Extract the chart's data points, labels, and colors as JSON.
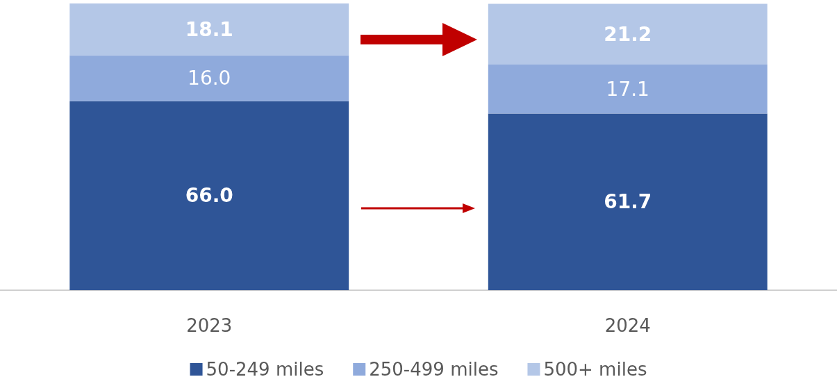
{
  "chart_data": {
    "type": "bar",
    "stacked": true,
    "categories": [
      "2023",
      "2024"
    ],
    "series": [
      {
        "name": "50-249 miles",
        "color": "#2f5597",
        "values": [
          66.0,
          61.7
        ],
        "value_labels": [
          "66.0",
          "61.7"
        ]
      },
      {
        "name": "250-499 miles",
        "color": "#8faadc",
        "values": [
          16.0,
          17.1
        ],
        "value_labels": [
          "16.0",
          "17.1"
        ]
      },
      {
        "name": "500+ miles",
        "color": "#b4c7e7",
        "values": [
          18.1,
          21.2
        ],
        "value_labels": [
          "18.1",
          "21.2"
        ]
      }
    ],
    "legend": "bottom",
    "grid": false
  }
}
